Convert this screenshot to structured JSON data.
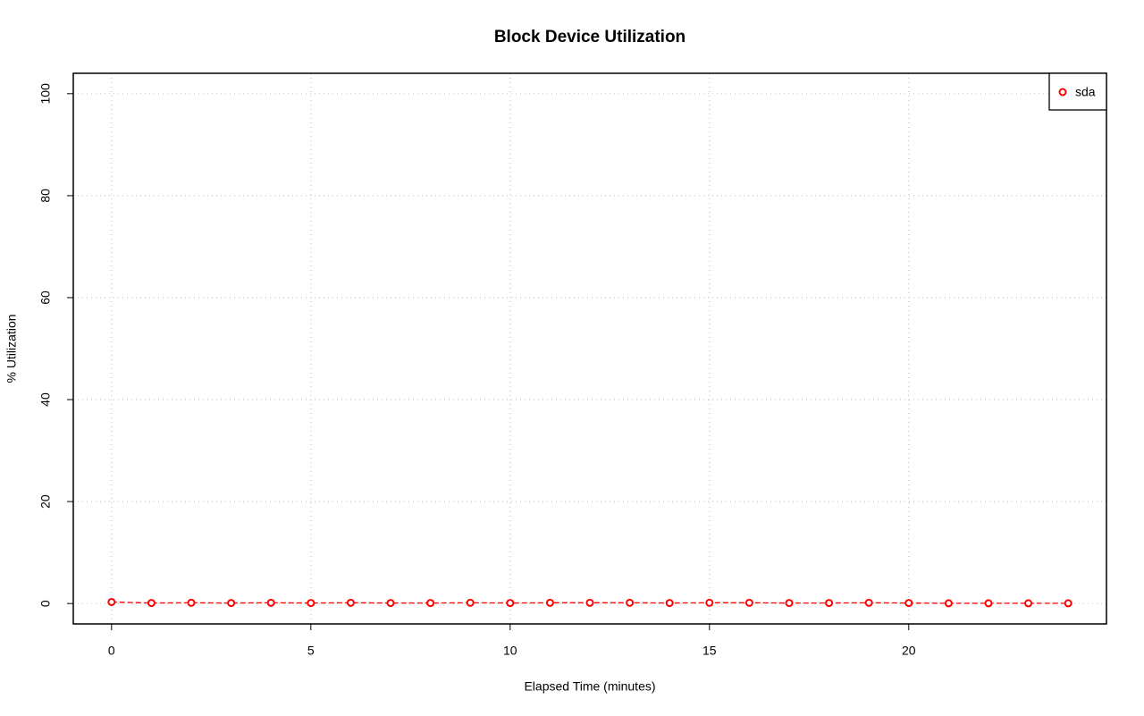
{
  "chart_data": {
    "type": "line",
    "title": "Block Device Utilization",
    "x_label": "Elapsed Time (minutes)",
    "y_label": "% Utilization",
    "x": [
      0,
      1,
      2,
      3,
      4,
      5,
      6,
      7,
      8,
      9,
      10,
      11,
      12,
      13,
      14,
      15,
      16,
      17,
      18,
      19,
      20,
      21,
      22,
      23,
      24
    ],
    "series": [
      {
        "name": "sda",
        "color": "#ff0000",
        "values": [
          0.3,
          0.1,
          0.15,
          0.1,
          0.15,
          0.1,
          0.15,
          0.1,
          0.1,
          0.15,
          0.1,
          0.15,
          0.15,
          0.15,
          0.1,
          0.15,
          0.15,
          0.1,
          0.1,
          0.15,
          0.1,
          0.05,
          0.05,
          0.05,
          0.05
        ]
      }
    ],
    "xlim": [
      -0.96,
      24.96
    ],
    "xticks": [
      0,
      5,
      10,
      15,
      20
    ],
    "ylim": [
      -4,
      104
    ],
    "yticks": [
      0,
      20,
      40,
      60,
      80,
      100
    ],
    "grid": true,
    "legend": "topright"
  }
}
